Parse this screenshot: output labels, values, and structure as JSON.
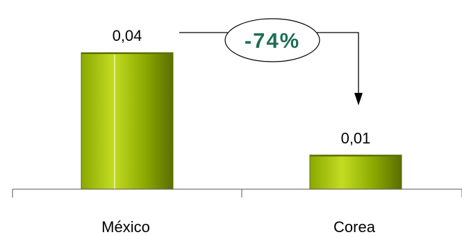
{
  "chart_data": {
    "type": "bar",
    "categories": [
      "México",
      "Corea"
    ],
    "values": [
      0.04,
      0.01
    ],
    "value_labels": [
      "0,04",
      "0,01"
    ],
    "ylim": [
      0,
      0.05
    ],
    "grid": false,
    "legend": "none",
    "xlabel": "",
    "ylabel": "",
    "annotation": {
      "text": "-74%",
      "from_category": "México",
      "to_category": "Corea"
    },
    "colors": {
      "bar_dark": "#5a6e00",
      "bar_mid": "#8aa800",
      "bar_light": "#c3dc22",
      "annotation_text": "#1f6e55",
      "axis": "#555555",
      "arrow": "#000000"
    }
  }
}
